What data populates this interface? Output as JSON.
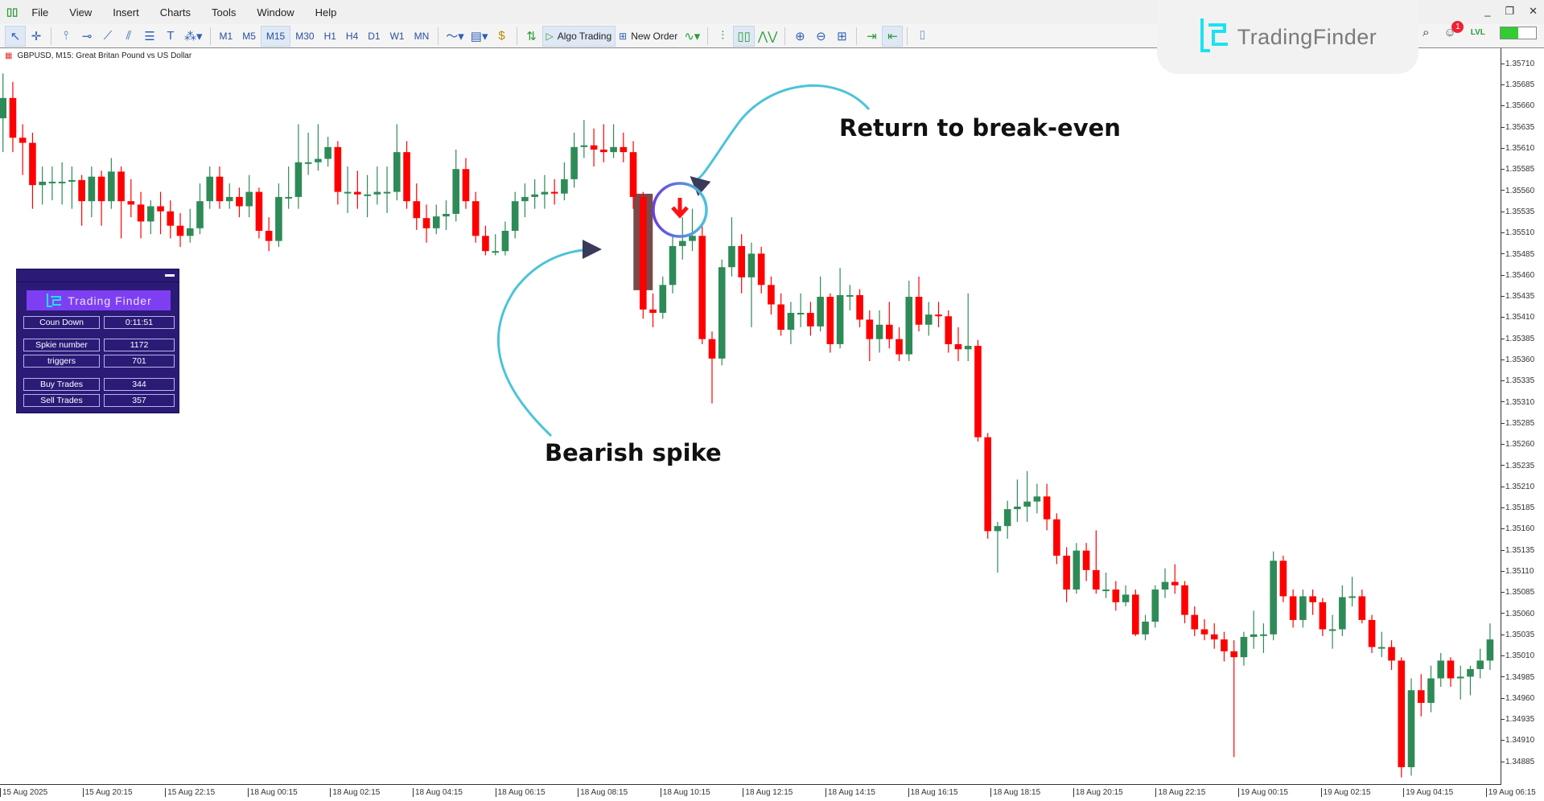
{
  "menu": {
    "items": [
      "File",
      "View",
      "Insert",
      "Charts",
      "Tools",
      "Window",
      "Help"
    ]
  },
  "toolbar": {
    "timeframes": [
      "M1",
      "M5",
      "M15",
      "M30",
      "H1",
      "H4",
      "D1",
      "W1",
      "MN"
    ],
    "active_timeframe": "M15",
    "algo_trading": "Algo Trading",
    "new_order": "New Order"
  },
  "chart_header": {
    "title": "GBPUSD, M15:  Great Britan Pound vs US Dollar"
  },
  "logo": {
    "text": "TradingFinder"
  },
  "notifications": {
    "count": "1"
  },
  "level_label": "LVL",
  "signal_strength": 0.5,
  "colors": {
    "bull": "#2e8b57",
    "bear": "#ff0000",
    "panel": "#2b1b77",
    "annotation_arrow": "#4cc3d9",
    "circle": "#6a3fe0"
  },
  "panel": {
    "logo_text": "Trading Finder",
    "rows": [
      {
        "label": "Coun Down",
        "value": "0:11:51"
      },
      {
        "label": "Spkie number",
        "value": "1172"
      },
      {
        "label": "triggers",
        "value": "701"
      },
      {
        "label": "Buy Trades",
        "value": "344"
      },
      {
        "label": "Sell Trades",
        "value": "357"
      }
    ]
  },
  "annotations": {
    "break_even": "Return to break-even",
    "bearish_spike": "Bearish spike"
  },
  "price_axis": [
    "1.35710",
    "1.35685",
    "1.35660",
    "1.35635",
    "1.35610",
    "1.35585",
    "1.35560",
    "1.35535",
    "1.35510",
    "1.35485",
    "1.35460",
    "1.35435",
    "1.35410",
    "1.35385",
    "1.35360",
    "1.35335",
    "1.35310",
    "1.35285",
    "1.35260",
    "1.35235",
    "1.35210",
    "1.35185",
    "1.35160",
    "1.35135",
    "1.35110",
    "1.35085",
    "1.35060",
    "1.35035",
    "1.35010",
    "1.34985",
    "1.34960",
    "1.34935",
    "1.34910",
    "1.34885"
  ],
  "time_axis": [
    "15 Aug 2025",
    "15 Aug 20:15",
    "15 Aug 22:15",
    "18 Aug 00:15",
    "18 Aug 02:15",
    "18 Aug 04:15",
    "18 Aug 06:15",
    "18 Aug 08:15",
    "18 Aug 10:15",
    "18 Aug 12:15",
    "18 Aug 14:15",
    "18 Aug 16:15",
    "18 Aug 18:15",
    "18 Aug 20:15",
    "18 Aug 22:15",
    "19 Aug 00:15",
    "19 Aug 02:15",
    "19 Aug 04:15",
    "19 Aug 06:15"
  ],
  "chart_data": {
    "type": "candlestick",
    "symbol": "GBPUSD",
    "timeframe": "M15",
    "ylim": [
      1.3487,
      1.3573
    ],
    "signal_candle_index": 71,
    "spike_candle_index": 65,
    "ohlc": [
      [
        1.35647,
        1.357,
        1.35607,
        1.35671
      ],
      [
        1.35671,
        1.3569,
        1.35607,
        1.35624
      ],
      [
        1.35624,
        1.3564,
        1.3558,
        1.35618
      ],
      [
        1.35618,
        1.3563,
        1.3554,
        1.35568
      ],
      [
        1.35568,
        1.3559,
        1.35545,
        1.35572
      ],
      [
        1.35572,
        1.3559,
        1.3555,
        1.35572
      ],
      [
        1.35572,
        1.35595,
        1.35545,
        1.35572
      ],
      [
        1.35572,
        1.3559,
        1.3554,
        1.35574
      ],
      [
        1.35574,
        1.3558,
        1.3552,
        1.35549
      ],
      [
        1.35549,
        1.3559,
        1.3553,
        1.35578
      ],
      [
        1.35578,
        1.35585,
        1.3552,
        1.35549
      ],
      [
        1.35549,
        1.356,
        1.3554,
        1.35584
      ],
      [
        1.35584,
        1.3559,
        1.35505,
        1.35549
      ],
      [
        1.35549,
        1.35575,
        1.3553,
        1.35545
      ],
      [
        1.35545,
        1.3556,
        1.35505,
        1.35525
      ],
      [
        1.35525,
        1.3555,
        1.3551,
        1.35543
      ],
      [
        1.35543,
        1.3556,
        1.3551,
        1.35537
      ],
      [
        1.35537,
        1.3555,
        1.35505,
        1.3552
      ],
      [
        1.3552,
        1.35535,
        1.35495,
        1.35508
      ],
      [
        1.35508,
        1.3554,
        1.355,
        1.35517
      ],
      [
        1.35517,
        1.3557,
        1.3551,
        1.35549
      ],
      [
        1.35549,
        1.3559,
        1.3554,
        1.35578
      ],
      [
        1.35578,
        1.3559,
        1.3554,
        1.35549
      ],
      [
        1.35549,
        1.3557,
        1.3554,
        1.35554
      ],
      [
        1.35554,
        1.35565,
        1.3553,
        1.35543
      ],
      [
        1.35543,
        1.3558,
        1.3553,
        1.3556
      ],
      [
        1.3556,
        1.35565,
        1.35505,
        1.35514
      ],
      [
        1.35514,
        1.3553,
        1.3549,
        1.35502
      ],
      [
        1.35502,
        1.3557,
        1.35495,
        1.35554
      ],
      [
        1.35554,
        1.3559,
        1.3554,
        1.35554
      ],
      [
        1.35554,
        1.3564,
        1.3554,
        1.35595
      ],
      [
        1.35595,
        1.3563,
        1.3558,
        1.35595
      ],
      [
        1.35595,
        1.3564,
        1.35585,
        1.35599
      ],
      [
        1.35599,
        1.35625,
        1.3559,
        1.35613
      ],
      [
        1.35613,
        1.3562,
        1.35545,
        1.3556
      ],
      [
        1.3556,
        1.3559,
        1.35535,
        1.3556
      ],
      [
        1.3556,
        1.35585,
        1.3554,
        1.35557
      ],
      [
        1.35557,
        1.3558,
        1.3553,
        1.35557
      ],
      [
        1.35557,
        1.3559,
        1.35545,
        1.3556
      ],
      [
        1.3556,
        1.3559,
        1.35535,
        1.3556
      ],
      [
        1.3556,
        1.3564,
        1.3555,
        1.35607
      ],
      [
        1.35607,
        1.3562,
        1.3554,
        1.35549
      ],
      [
        1.35549,
        1.3557,
        1.35515,
        1.35529
      ],
      [
        1.35529,
        1.35545,
        1.355,
        1.35517
      ],
      [
        1.35517,
        1.35545,
        1.3551,
        1.35531
      ],
      [
        1.35531,
        1.3555,
        1.35515,
        1.35534
      ],
      [
        1.35534,
        1.3561,
        1.35525,
        1.35587
      ],
      [
        1.35587,
        1.356,
        1.3554,
        1.35549
      ],
      [
        1.35549,
        1.3556,
        1.355,
        1.35508
      ],
      [
        1.35508,
        1.3552,
        1.35485,
        1.3549
      ],
      [
        1.3549,
        1.3551,
        1.35485,
        1.3549
      ],
      [
        1.3549,
        1.35525,
        1.35485,
        1.35514
      ],
      [
        1.35514,
        1.3556,
        1.35505,
        1.35549
      ],
      [
        1.35549,
        1.3557,
        1.3553,
        1.35554
      ],
      [
        1.35554,
        1.35575,
        1.3554,
        1.35557
      ],
      [
        1.35557,
        1.3558,
        1.3554,
        1.3556
      ],
      [
        1.3556,
        1.35575,
        1.35545,
        1.35558
      ],
      [
        1.35558,
        1.35595,
        1.3555,
        1.35575
      ],
      [
        1.35575,
        1.3563,
        1.35565,
        1.35613
      ],
      [
        1.35613,
        1.35645,
        1.356,
        1.35615
      ],
      [
        1.35615,
        1.35635,
        1.3559,
        1.3561
      ],
      [
        1.3561,
        1.3564,
        1.35595,
        1.35607
      ],
      [
        1.35607,
        1.3564,
        1.356,
        1.35613
      ],
      [
        1.35613,
        1.3563,
        1.35595,
        1.35607
      ],
      [
        1.35607,
        1.3562,
        1.3554,
        1.35554
      ],
      [
        1.35554,
        1.3556,
        1.3541,
        1.35421
      ],
      [
        1.35421,
        1.3544,
        1.354,
        1.35417
      ],
      [
        1.35417,
        1.3546,
        1.3541,
        1.3545
      ],
      [
        1.3545,
        1.3551,
        1.3544,
        1.35496
      ],
      [
        1.35496,
        1.3553,
        1.3548,
        1.35502
      ],
      [
        1.35502,
        1.3554,
        1.3549,
        1.35508
      ],
      [
        1.35508,
        1.3552,
        1.3538,
        1.35386
      ],
      [
        1.35386,
        1.35395,
        1.3531,
        1.35363
      ],
      [
        1.35363,
        1.3548,
        1.35355,
        1.35471
      ],
      [
        1.35471,
        1.3553,
        1.3546,
        1.35496
      ],
      [
        1.35496,
        1.3551,
        1.3544,
        1.35459
      ],
      [
        1.35459,
        1.355,
        1.354,
        1.35487
      ],
      [
        1.35487,
        1.35495,
        1.3544,
        1.3545
      ],
      [
        1.3545,
        1.3546,
        1.35415,
        1.35427
      ],
      [
        1.35427,
        1.3544,
        1.3539,
        1.35397
      ],
      [
        1.35397,
        1.3543,
        1.3538,
        1.35417
      ],
      [
        1.35417,
        1.3544,
        1.354,
        1.35417
      ],
      [
        1.35417,
        1.3543,
        1.3539,
        1.35401
      ],
      [
        1.35401,
        1.3546,
        1.35395,
        1.35436
      ],
      [
        1.35436,
        1.3544,
        1.3537,
        1.3538
      ],
      [
        1.3538,
        1.3547,
        1.35375,
        1.35438
      ],
      [
        1.35438,
        1.3545,
        1.3542,
        1.35438
      ],
      [
        1.35438,
        1.35445,
        1.354,
        1.35409
      ],
      [
        1.35409,
        1.3542,
        1.3536,
        1.35386
      ],
      [
        1.35386,
        1.3542,
        1.3537,
        1.35403
      ],
      [
        1.35403,
        1.3543,
        1.35375,
        1.35386
      ],
      [
        1.35386,
        1.354,
        1.3536,
        1.35368
      ],
      [
        1.35368,
        1.35455,
        1.3536,
        1.35436
      ],
      [
        1.35436,
        1.3546,
        1.35395,
        1.35403
      ],
      [
        1.35403,
        1.3543,
        1.3539,
        1.35415
      ],
      [
        1.35415,
        1.3543,
        1.354,
        1.35413
      ],
      [
        1.35413,
        1.3542,
        1.3537,
        1.3538
      ],
      [
        1.3538,
        1.354,
        1.3536,
        1.35374
      ],
      [
        1.35374,
        1.3544,
        1.3536,
        1.35378
      ],
      [
        1.35378,
        1.35385,
        1.35265,
        1.3527
      ],
      [
        1.3527,
        1.35275,
        1.3515,
        1.35159
      ],
      [
        1.35159,
        1.3517,
        1.3511,
        1.35165
      ],
      [
        1.35165,
        1.35195,
        1.3515,
        1.35185
      ],
      [
        1.35185,
        1.3522,
        1.3517,
        1.35188
      ],
      [
        1.35188,
        1.3523,
        1.3517,
        1.35194
      ],
      [
        1.35194,
        1.35215,
        1.3518,
        1.352
      ],
      [
        1.352,
        1.35215,
        1.3516,
        1.35173
      ],
      [
        1.35173,
        1.3518,
        1.3512,
        1.3513
      ],
      [
        1.3513,
        1.3514,
        1.35075,
        1.3509
      ],
      [
        1.3509,
        1.35145,
        1.35085,
        1.35136
      ],
      [
        1.35136,
        1.35145,
        1.351,
        1.35113
      ],
      [
        1.35113,
        1.3516,
        1.35085,
        1.3509
      ],
      [
        1.3509,
        1.3511,
        1.3508,
        1.3509
      ],
      [
        1.3509,
        1.351,
        1.35065,
        1.35075
      ],
      [
        1.35075,
        1.35095,
        1.3507,
        1.35084
      ],
      [
        1.35084,
        1.3509,
        1.35035,
        1.35037
      ],
      [
        1.35037,
        1.3506,
        1.3503,
        1.35052
      ],
      [
        1.35052,
        1.35095,
        1.35045,
        1.3509
      ],
      [
        1.3509,
        1.35115,
        1.3508,
        1.35099
      ],
      [
        1.35099,
        1.3512,
        1.35085,
        1.35095
      ],
      [
        1.35095,
        1.351,
        1.3505,
        1.3506
      ],
      [
        1.3506,
        1.3507,
        1.35035,
        1.35043
      ],
      [
        1.35043,
        1.35055,
        1.3503,
        1.35037
      ],
      [
        1.35037,
        1.3505,
        1.3502,
        1.35031
      ],
      [
        1.35031,
        1.3504,
        1.35005,
        1.35017
      ],
      [
        1.35017,
        1.3503,
        1.34892,
        1.3501
      ],
      [
        1.3501,
        1.3504,
        1.35,
        1.35034
      ],
      [
        1.35034,
        1.35065,
        1.3502,
        1.35037
      ],
      [
        1.35037,
        1.3505,
        1.35015,
        1.35037
      ],
      [
        1.35037,
        1.35135,
        1.3503,
        1.35124
      ],
      [
        1.35124,
        1.3513,
        1.35075,
        1.35082
      ],
      [
        1.35082,
        1.3509,
        1.35045,
        1.35054
      ],
      [
        1.35054,
        1.3509,
        1.35045,
        1.35082
      ],
      [
        1.35082,
        1.3509,
        1.3506,
        1.35075
      ],
      [
        1.35075,
        1.3508,
        1.35035,
        1.35043
      ],
      [
        1.35043,
        1.3506,
        1.3502,
        1.35043
      ],
      [
        1.35043,
        1.35095,
        1.35035,
        1.35081
      ],
      [
        1.35081,
        1.35105,
        1.3507,
        1.35082
      ],
      [
        1.35082,
        1.3509,
        1.3505,
        1.35054
      ],
      [
        1.35054,
        1.3506,
        1.35015,
        1.35022
      ],
      [
        1.35022,
        1.3504,
        1.3501,
        1.35022
      ],
      [
        1.35022,
        1.3503,
        1.34995,
        1.35006
      ],
      [
        1.35006,
        1.3501,
        1.34868,
        1.3488
      ],
      [
        1.3488,
        1.34985,
        1.3487,
        1.34971
      ],
      [
        1.34971,
        1.3499,
        1.3494,
        1.34956
      ],
      [
        1.34956,
        1.35,
        1.34945,
        1.34985
      ],
      [
        1.34985,
        1.35015,
        1.34975,
        1.35006
      ],
      [
        1.35006,
        1.3501,
        1.34975,
        1.34985
      ],
      [
        1.34985,
        1.35,
        1.3496,
        1.34987
      ],
      [
        1.34987,
        1.35,
        1.34965,
        1.34996
      ],
      [
        1.34996,
        1.3502,
        1.34985,
        1.35006
      ],
      [
        1.35006,
        1.3505,
        1.34995,
        1.35031
      ]
    ]
  }
}
